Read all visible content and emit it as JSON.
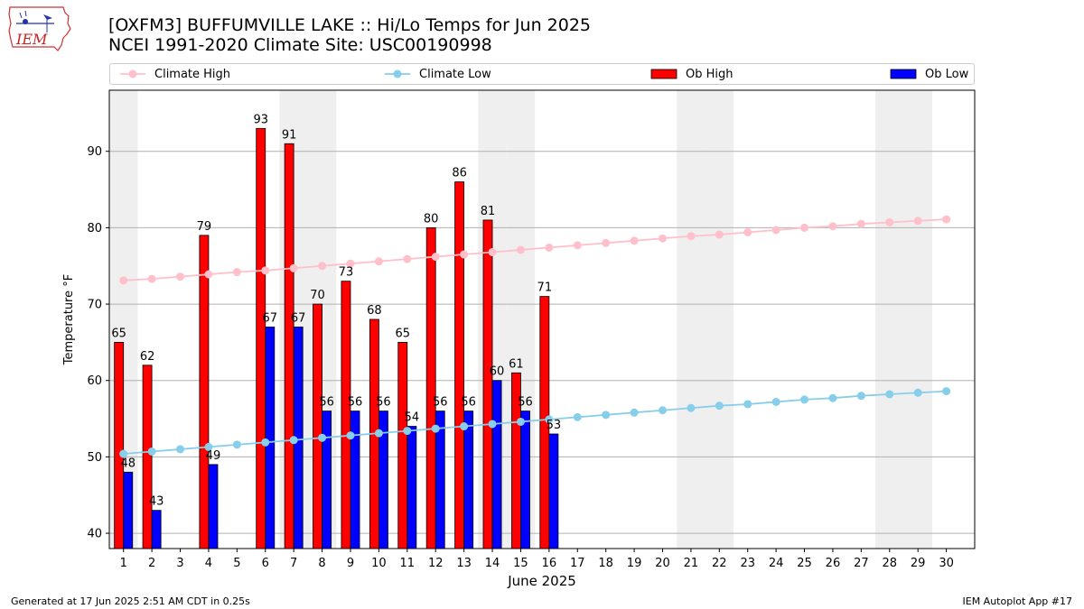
{
  "logo": {
    "text": "IEM"
  },
  "header": {
    "title": "[OXFM3] BUFFUMVILLE LAKE :: Hi/Lo Temps for Jun 2025",
    "subtitle": "NCEI 1991-2020 Climate Site: USC00190998"
  },
  "footer": {
    "left": "Generated at 17 Jun 2025 2:51 AM CDT in 0.25s",
    "right": "IEM Autoplot App #17"
  },
  "chart_data": {
    "type": "bar",
    "xlabel": "June 2025",
    "ylabel": "Temperature °F",
    "ylim": [
      38,
      98
    ],
    "xlim": [
      0.5,
      31
    ],
    "yticks": [
      40,
      50,
      60,
      70,
      80,
      90
    ],
    "grid": "horizontal",
    "legend_placement": "top",
    "days": [
      1,
      2,
      3,
      4,
      5,
      6,
      7,
      8,
      9,
      10,
      11,
      12,
      13,
      14,
      15,
      16,
      17,
      18,
      19,
      20,
      21,
      22,
      23,
      24,
      25,
      26,
      27,
      28,
      29,
      30
    ],
    "weekend_days": [
      1,
      7,
      8,
      14,
      15,
      21,
      22,
      28,
      29
    ],
    "bar_series": [
      {
        "name": "Ob High",
        "color": "#ff0000",
        "values": [
          65,
          62,
          null,
          79,
          null,
          93,
          91,
          70,
          73,
          68,
          65,
          80,
          86,
          81,
          61,
          71,
          null,
          null,
          null,
          null,
          null,
          null,
          null,
          null,
          null,
          null,
          null,
          null,
          null,
          null
        ]
      },
      {
        "name": "Ob Low",
        "color": "#0000ff",
        "values": [
          48,
          43,
          null,
          49,
          null,
          67,
          67,
          56,
          56,
          56,
          54,
          56,
          56,
          60,
          56,
          53,
          null,
          null,
          null,
          null,
          null,
          null,
          null,
          null,
          null,
          null,
          null,
          null,
          null,
          null
        ]
      }
    ],
    "line_series": [
      {
        "name": "Climate High",
        "color": "#ffc0cb",
        "values": [
          73.1,
          73.3,
          73.6,
          73.9,
          74.2,
          74.4,
          74.7,
          75.0,
          75.3,
          75.6,
          75.9,
          76.2,
          76.5,
          76.8,
          77.1,
          77.4,
          77.7,
          78.0,
          78.3,
          78.6,
          78.9,
          79.1,
          79.4,
          79.7,
          80.0,
          80.2,
          80.5,
          80.7,
          80.9,
          81.1
        ]
      },
      {
        "name": "Climate Low",
        "color": "#87ceeb",
        "values": [
          50.4,
          50.7,
          51.0,
          51.3,
          51.6,
          51.9,
          52.2,
          52.5,
          52.8,
          53.1,
          53.4,
          53.7,
          54.0,
          54.3,
          54.6,
          54.9,
          55.2,
          55.5,
          55.8,
          56.1,
          56.4,
          56.7,
          56.9,
          57.2,
          57.5,
          57.7,
          58.0,
          58.2,
          58.4,
          58.6
        ]
      }
    ]
  }
}
